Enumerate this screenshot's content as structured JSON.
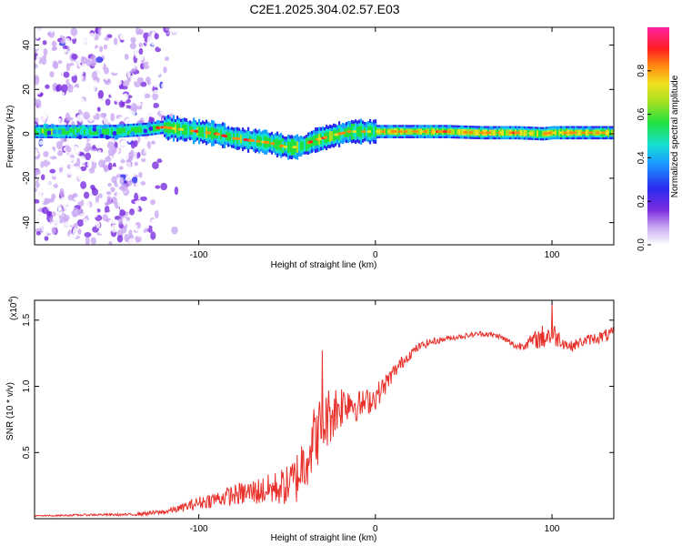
{
  "title": "C2E1.2025.304.02.57.E03",
  "chart_data": [
    {
      "type": "heatmap",
      "xlabel": "Height of straight line (km)",
      "ylabel": "Frequency (Hz)",
      "xlim": [
        -193,
        135
      ],
      "ylim": [
        -50,
        48
      ],
      "xticks": [
        -100,
        0,
        100
      ],
      "yticks": [
        -40,
        -20,
        0,
        20,
        40
      ],
      "colorbar": {
        "label": "Normalized spectral amplitude",
        "ticks": [
          0.0,
          0.2,
          0.4,
          0.6,
          0.8
        ],
        "range": [
          0,
          1
        ]
      },
      "ridge_frequency": {
        "x": [
          -190,
          -170,
          -150,
          -130,
          -120,
          -110,
          -100,
          -90,
          -80,
          -70,
          -60,
          -55,
          -50,
          -45,
          -40,
          -35,
          -30,
          -25,
          -20,
          -15,
          -10,
          -5,
          0,
          10,
          20,
          40,
          60,
          80,
          95,
          100,
          120,
          135
        ],
        "y": [
          1,
          1,
          1,
          2,
          3,
          2,
          1,
          0,
          -2,
          -3,
          -4,
          -5,
          -6,
          -6,
          -5,
          -3,
          -2,
          -1,
          0,
          1,
          1,
          1,
          1,
          1,
          1,
          1,
          0.5,
          0.5,
          0,
          0.5,
          0.5,
          0.5
        ]
      }
    },
    {
      "type": "line",
      "xlabel": "Height of straight line (km)",
      "ylabel": "SNR (10 * v/v)",
      "multiplier": "(x10",
      "multiplier_exp": "4",
      "multiplier_close": ")",
      "xlim": [
        -193,
        135
      ],
      "ylim": [
        0,
        1.65
      ],
      "xticks": [
        -100,
        0,
        100
      ],
      "yticks": [
        0.5,
        1.0,
        1.5
      ],
      "ytick_labels": [
        "0.5",
        "1.0",
        "1.5"
      ],
      "color": "#e8302a",
      "series": [
        {
          "name": "SNR",
          "x": [
            -193,
            -160,
            -140,
            -120,
            -110,
            -100,
            -90,
            -80,
            -70,
            -60,
            -50,
            -45,
            -40,
            -35,
            -30,
            -25,
            -20,
            -15,
            -10,
            -5,
            0,
            5,
            10,
            15,
            20,
            25,
            30,
            40,
            50,
            60,
            70,
            80,
            85,
            90,
            95,
            100,
            105,
            110,
            120,
            130,
            135
          ],
          "y": [
            0.02,
            0.03,
            0.03,
            0.05,
            0.08,
            0.12,
            0.15,
            0.18,
            0.2,
            0.22,
            0.25,
            0.3,
            0.45,
            0.6,
            0.7,
            0.8,
            0.85,
            0.9,
            0.85,
            0.88,
            0.92,
            1.0,
            1.1,
            1.18,
            1.25,
            1.3,
            1.33,
            1.36,
            1.38,
            1.4,
            1.38,
            1.3,
            1.32,
            1.35,
            1.37,
            1.4,
            1.35,
            1.3,
            1.35,
            1.38,
            1.4
          ],
          "noise": [
            0.005,
            0.008,
            0.01,
            0.02,
            0.03,
            0.05,
            0.06,
            0.08,
            0.1,
            0.12,
            0.15,
            0.2,
            0.25,
            0.25,
            0.25,
            0.22,
            0.18,
            0.15,
            0.12,
            0.1,
            0.1,
            0.08,
            0.06,
            0.05,
            0.04,
            0.03,
            0.03,
            0.02,
            0.02,
            0.02,
            0.02,
            0.03,
            0.04,
            0.06,
            0.1,
            0.1,
            0.06,
            0.04,
            0.04,
            0.05,
            0.05
          ],
          "peaks": [
            {
              "x": 100,
              "y": 1.63
            },
            {
              "x": -30,
              "y": 1.27
            }
          ]
        }
      ]
    }
  ]
}
